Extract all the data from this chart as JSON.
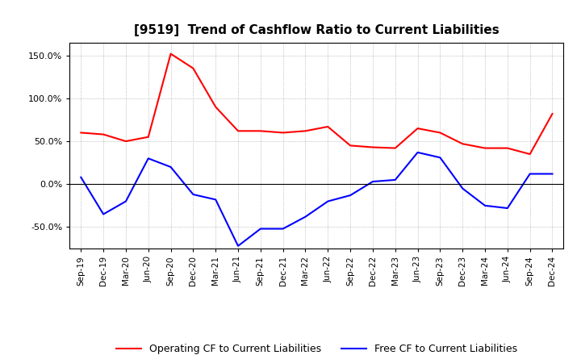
{
  "title": "[9519]  Trend of Cashflow Ratio to Current Liabilities",
  "x_labels": [
    "Sep-19",
    "Dec-19",
    "Mar-20",
    "Jun-20",
    "Sep-20",
    "Dec-20",
    "Mar-21",
    "Jun-21",
    "Sep-21",
    "Dec-21",
    "Mar-22",
    "Jun-22",
    "Sep-22",
    "Dec-22",
    "Mar-23",
    "Jun-23",
    "Sep-23",
    "Dec-23",
    "Mar-24",
    "Jun-24",
    "Sep-24",
    "Dec-24"
  ],
  "operating_cf": [
    60,
    58,
    50,
    55,
    152,
    135,
    90,
    62,
    62,
    60,
    62,
    67,
    45,
    43,
    42,
    65,
    60,
    47,
    42,
    42,
    35,
    82
  ],
  "free_cf": [
    8,
    -35,
    -20,
    30,
    20,
    -12,
    -18,
    -72,
    -52,
    -52,
    -38,
    -20,
    -13,
    3,
    5,
    37,
    31,
    -5,
    -25,
    -28,
    12,
    12
  ],
  "operating_color": "#ff0000",
  "free_color": "#0000ff",
  "ylim": [
    -75,
    165
  ],
  "yticks": [
    -50,
    0,
    50,
    100,
    150
  ],
  "background_color": "#ffffff",
  "grid_color": "#999999",
  "legend_labels": [
    "Operating CF to Current Liabilities",
    "Free CF to Current Liabilities"
  ]
}
